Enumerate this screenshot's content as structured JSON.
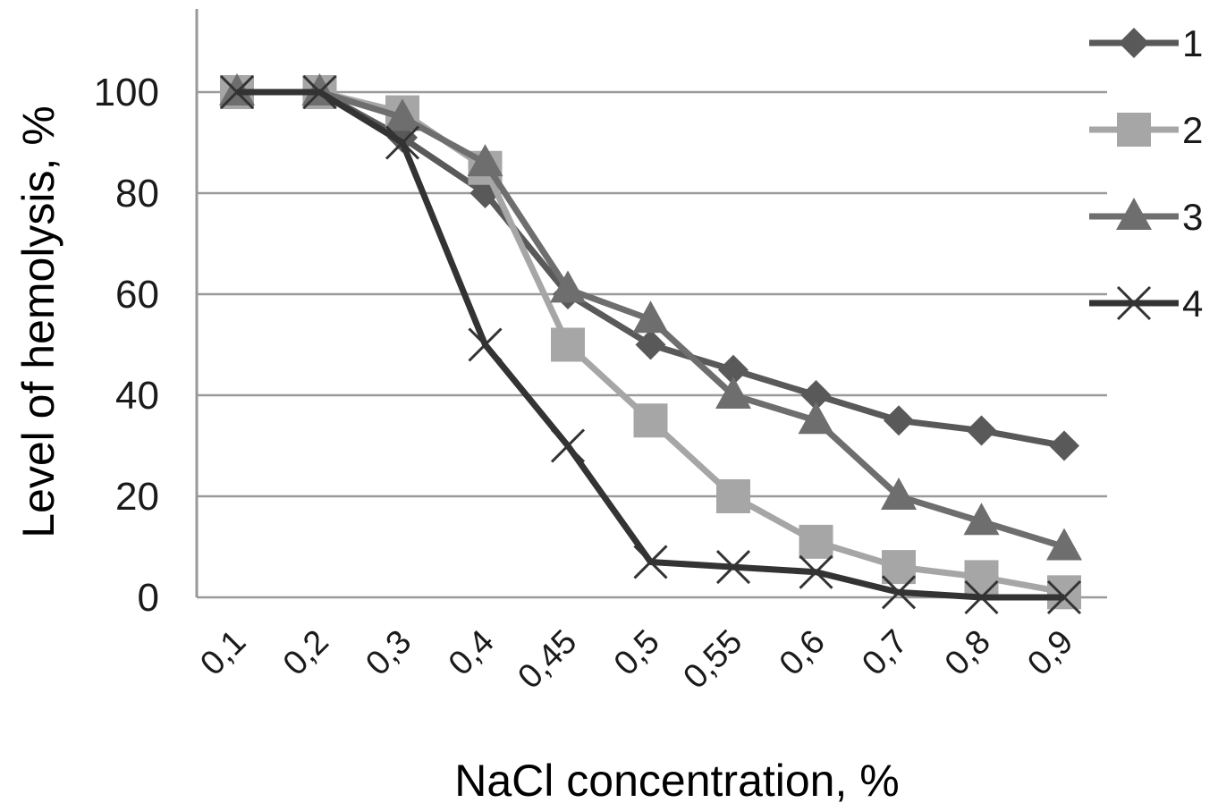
{
  "chart_data": {
    "type": "line",
    "categories": [
      "0,1",
      "0,2",
      "0,3",
      "0,4",
      "0,45",
      "0,5",
      "0,55",
      "0,6",
      "0,7",
      "0,8",
      "0,9"
    ],
    "xlabel": "NaCl concentration, %",
    "ylabel": "Level of hemolysis, %",
    "ylim": [
      0,
      100
    ],
    "yticks": [
      "0",
      "20",
      "40",
      "60",
      "80",
      "100"
    ],
    "grid": true,
    "legend_position": "right",
    "series": [
      {
        "name": "1",
        "marker": "diamond",
        "color": "#595959",
        "values": [
          100,
          100,
          91,
          80,
          60,
          50,
          45,
          40,
          35,
          33,
          30
        ]
      },
      {
        "name": "2",
        "marker": "square",
        "color": "#a6a6a6",
        "values": [
          100,
          100,
          96,
          85,
          50,
          35,
          20,
          11,
          6,
          4,
          1
        ]
      },
      {
        "name": "3",
        "marker": "triangle",
        "color": "#6e6e6e",
        "values": [
          100,
          100,
          95,
          86,
          61,
          55,
          40,
          35,
          20,
          15,
          10
        ]
      },
      {
        "name": "4",
        "marker": "x",
        "color": "#333333",
        "values": [
          100,
          100,
          90,
          50,
          30,
          7,
          6,
          5,
          1,
          0,
          0
        ]
      }
    ]
  }
}
